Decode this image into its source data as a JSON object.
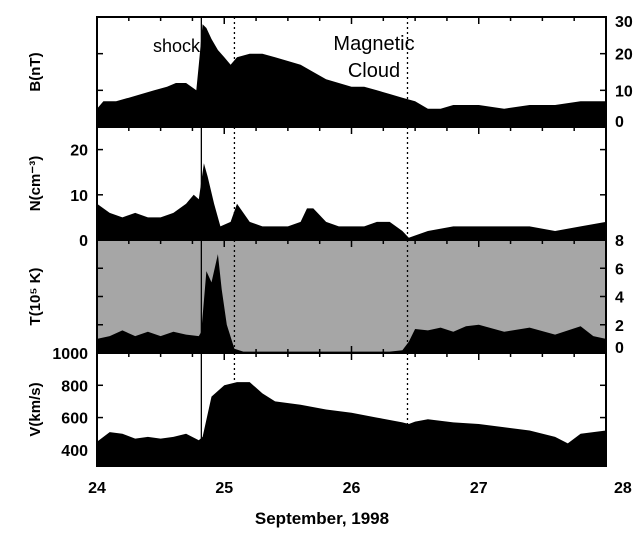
{
  "figure": {
    "xlabel": "September, 1998",
    "x_tick_labels": [
      "24",
      "25",
      "26",
      "27",
      "28"
    ]
  },
  "annotations": {
    "shock_label": "shock",
    "cloud_label_line1": "Magnetic",
    "cloud_label_line2": "Cloud"
  },
  "colors": {
    "fill": "#000000",
    "temperature_background": "#a6a6a6",
    "axes": "#000000"
  },
  "chart_data": [
    {
      "type": "area",
      "ylabel": "B(nT)",
      "xlim": [
        24,
        28
      ],
      "ylim": [
        0,
        30
      ],
      "y_tick_labels": [
        "0",
        "10",
        "20",
        "30"
      ],
      "y_axis_side": "right",
      "markers": {
        "shock_day": 24.82,
        "cloud_start_day": 25.08,
        "cloud_end_day": 26.44
      },
      "series": [
        {
          "x": [
            24.0,
            24.05,
            24.15,
            24.25,
            24.35,
            24.45,
            24.55,
            24.62,
            24.7,
            24.78,
            24.8,
            24.83,
            24.86,
            24.9,
            24.95,
            25.0,
            25.05,
            25.1,
            25.2,
            25.3,
            25.4,
            25.5,
            25.6,
            25.7,
            25.8,
            25.9,
            26.0,
            26.1,
            26.2,
            26.3,
            26.4,
            26.5,
            26.6,
            26.7,
            26.8,
            26.9,
            27.0,
            27.2,
            27.4,
            27.6,
            27.8,
            28.0
          ],
          "y": [
            5,
            7,
            7,
            8,
            9,
            10,
            11,
            12,
            12,
            10,
            17,
            28,
            27,
            24,
            21,
            19,
            17,
            19,
            20,
            20,
            19,
            18,
            17,
            15,
            13,
            12,
            11,
            11,
            10,
            9,
            8,
            7,
            5,
            5,
            6,
            6,
            6,
            5,
            6,
            6,
            7,
            7
          ]
        }
      ]
    },
    {
      "type": "area",
      "ylabel": "N(cm⁻³)",
      "xlim": [
        24,
        28
      ],
      "ylim": [
        0,
        25
      ],
      "y_tick_labels": [
        "0",
        "10",
        "20"
      ],
      "y_axis_side": "left",
      "series": [
        {
          "x": [
            24.0,
            24.1,
            24.2,
            24.3,
            24.4,
            24.5,
            24.6,
            24.7,
            24.76,
            24.8,
            24.84,
            24.87,
            24.92,
            24.97,
            25.05,
            25.1,
            25.2,
            25.3,
            25.4,
            25.5,
            25.6,
            25.65,
            25.7,
            25.8,
            25.9,
            26.0,
            26.1,
            26.2,
            26.3,
            26.4,
            26.45,
            26.5,
            26.6,
            26.8,
            27.0,
            27.2,
            27.4,
            27.6,
            27.8,
            28.0
          ],
          "y": [
            8,
            6,
            5,
            6,
            5,
            5,
            6,
            8,
            10,
            9,
            17,
            14,
            8,
            3,
            4,
            8,
            4,
            3,
            3,
            3,
            4,
            7,
            7,
            4,
            3,
            3,
            3,
            4,
            4,
            2,
            0.5,
            1,
            2,
            3,
            3,
            3,
            3,
            2,
            3,
            4
          ]
        }
      ]
    },
    {
      "type": "area",
      "ylabel": "T(10⁵ K)",
      "xlim": [
        24,
        28
      ],
      "ylim": [
        0,
        8
      ],
      "y_tick_labels": [
        "0",
        "2",
        "4",
        "6",
        "8"
      ],
      "y_axis_side": "right",
      "background": "gray",
      "series": [
        {
          "x": [
            24.0,
            24.1,
            24.2,
            24.3,
            24.4,
            24.5,
            24.6,
            24.7,
            24.8,
            24.82,
            24.86,
            24.9,
            24.95,
            24.98,
            25.02,
            25.08,
            25.15,
            25.3,
            25.5,
            25.8,
            26.0,
            26.3,
            26.4,
            26.45,
            26.5,
            26.6,
            26.7,
            26.8,
            26.9,
            27.0,
            27.2,
            27.4,
            27.6,
            27.8,
            27.9,
            28.0
          ],
          "y": [
            1.0,
            1.2,
            1.6,
            1.2,
            1.5,
            1.2,
            1.5,
            1.3,
            1.2,
            1.5,
            5.8,
            5.0,
            7.0,
            4.5,
            2.0,
            0.3,
            0.1,
            0.1,
            0.1,
            0.1,
            0.1,
            0.1,
            0.2,
            0.8,
            1.7,
            1.6,
            1.8,
            1.5,
            1.9,
            2.0,
            1.5,
            1.8,
            1.3,
            1.9,
            1.2,
            1.0
          ]
        }
      ]
    },
    {
      "type": "area",
      "ylabel": "V(km/s)",
      "xlim": [
        24,
        28
      ],
      "ylim": [
        300,
        1000
      ],
      "y_tick_labels": [
        "400",
        "600",
        "800",
        "1000"
      ],
      "y_axis_side": "left",
      "series": [
        {
          "x": [
            24.0,
            24.1,
            24.2,
            24.3,
            24.4,
            24.5,
            24.6,
            24.7,
            24.8,
            24.83,
            24.9,
            25.0,
            25.1,
            25.2,
            25.3,
            25.4,
            25.6,
            25.8,
            26.0,
            26.2,
            26.4,
            26.45,
            26.5,
            26.6,
            26.8,
            27.0,
            27.2,
            27.4,
            27.6,
            27.7,
            27.8,
            28.0
          ],
          "y": [
            450,
            510,
            500,
            470,
            480,
            470,
            480,
            500,
            460,
            480,
            730,
            800,
            820,
            820,
            750,
            700,
            680,
            650,
            630,
            600,
            570,
            560,
            575,
            590,
            570,
            560,
            540,
            520,
            480,
            440,
            500,
            520
          ]
        }
      ]
    }
  ]
}
